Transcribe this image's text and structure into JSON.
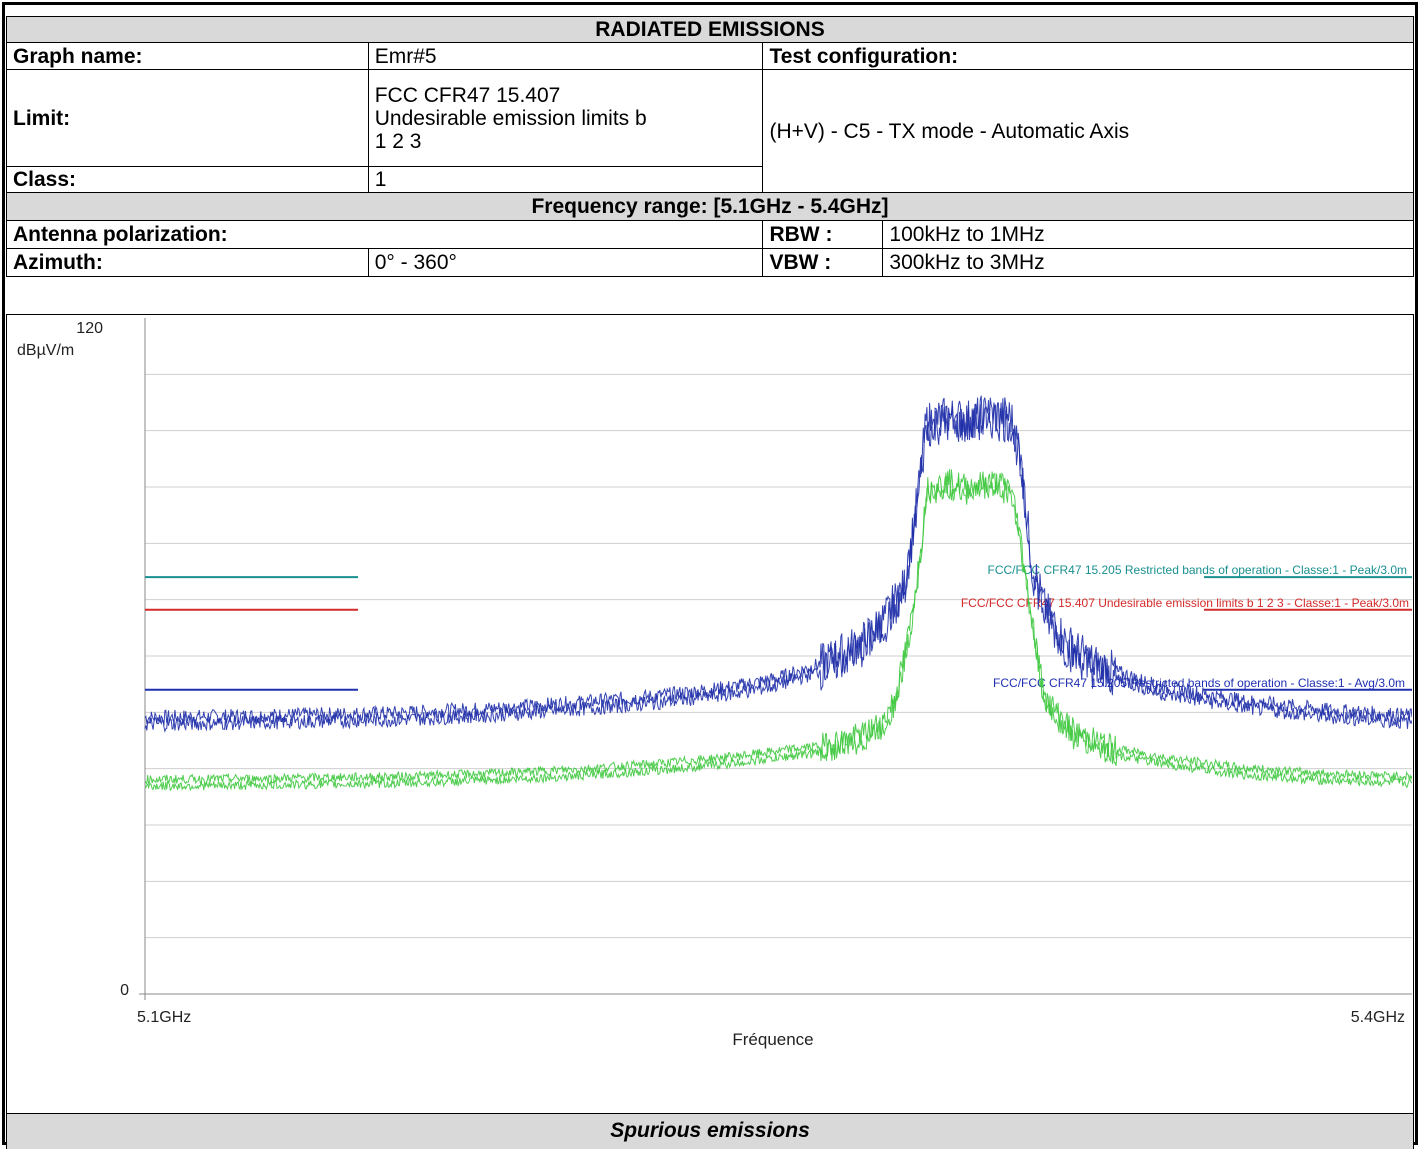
{
  "header": {
    "title": "RADIATED EMISSIONS",
    "graph_name_label": "Graph name:",
    "graph_name_value": "Emr#5",
    "test_config_label": "Test configuration:",
    "limit_label": "Limit:",
    "limit_value_lines": [
      "FCC CFR47 15.407",
      "Undesirable emission limits b",
      "1 2 3"
    ],
    "test_config_value": "(H+V) - C5 - TX mode - Automatic Axis",
    "class_label": "Class:",
    "class_value": "1",
    "freq_range": "Frequency range:  [5.1GHz - 5.4GHz]",
    "antenna_label": "Antenna polarization:",
    "rbw_label": "RBW :",
    "rbw_value": "100kHz to 1MHz",
    "azimuth_label": "Azimuth:",
    "azimuth_value": "0° - 360°",
    "vbw_label": "VBW :",
    "vbw_value": "300kHz to 3MHz"
  },
  "footer": {
    "caption": "Spurious emissions"
  },
  "colors": {
    "peak_restricted": "#1a9090",
    "peak_undesirable": "#d42a2a",
    "avg_restricted": "#1f2fb0",
    "trace_peak": "#1e2ea8",
    "trace_avg": "#3ec83e",
    "grid": "#cfcfcf"
  },
  "chart_data": {
    "type": "line",
    "title": "",
    "xlabel": "Fréquence",
    "ylabel": "dBµV/m",
    "xlim": [
      5.1,
      5.4
    ],
    "ylim": [
      0,
      120
    ],
    "x_unit": "GHz",
    "y_tick_labels": [
      "120",
      "0"
    ],
    "x_tick_labels": [
      "5.1GHz",
      "5.4GHz"
    ],
    "grid": true,
    "limit_lines": [
      {
        "label": "FCC/FCC CFR47 15.205 Restricted bands of operation - Classe:1 - Peak/3.0m",
        "value": 74,
        "color": "#1a9090"
      },
      {
        "label": "FCC/FCC CFR47 15.407 Undesirable emission limits b 1 2 3 - Classe:1 - Peak/3.0m",
        "value": 68.2,
        "color": "#d42a2a"
      },
      {
        "label": "FCC/FCC CFR47 15.205 Restricted bands of operation - Classe:1 - Avg/3.0m",
        "value": 54,
        "color": "#1f2fb0"
      }
    ],
    "series": [
      {
        "color": "#1e2ea8",
        "points": [
          [
            5.1,
            48.5
          ],
          [
            5.12,
            48.7
          ],
          [
            5.14,
            49.0
          ],
          [
            5.16,
            49.3
          ],
          [
            5.18,
            50.0
          ],
          [
            5.2,
            51.0
          ],
          [
            5.22,
            52.2
          ],
          [
            5.24,
            54.0
          ],
          [
            5.25,
            55.5
          ],
          [
            5.26,
            58.0
          ],
          [
            5.27,
            62.0
          ],
          [
            5.275,
            66.0
          ],
          [
            5.28,
            72.0
          ],
          [
            5.283,
            88.0
          ],
          [
            5.285,
            101.0
          ],
          [
            5.29,
            102.0
          ],
          [
            5.295,
            101.5
          ],
          [
            5.3,
            102.5
          ],
          [
            5.305,
            102.0
          ],
          [
            5.307,
            96.0
          ],
          [
            5.31,
            76.0
          ],
          [
            5.313,
            68.0
          ],
          [
            5.318,
            62.0
          ],
          [
            5.325,
            58.0
          ],
          [
            5.34,
            54.0
          ],
          [
            5.36,
            51.5
          ],
          [
            5.38,
            49.8
          ],
          [
            5.4,
            48.8
          ]
        ]
      },
      {
        "color": "#3ec83e",
        "points": [
          [
            5.1,
            37.5
          ],
          [
            5.12,
            37.6
          ],
          [
            5.14,
            37.8
          ],
          [
            5.16,
            38.0
          ],
          [
            5.18,
            38.5
          ],
          [
            5.2,
            39.2
          ],
          [
            5.22,
            40.2
          ],
          [
            5.24,
            41.6
          ],
          [
            5.26,
            43.5
          ],
          [
            5.27,
            45.5
          ],
          [
            5.275,
            48.0
          ],
          [
            5.278,
            53.0
          ],
          [
            5.281,
            64.0
          ],
          [
            5.284,
            80.0
          ],
          [
            5.285,
            89.0
          ],
          [
            5.29,
            90.5
          ],
          [
            5.295,
            89.5
          ],
          [
            5.3,
            90.5
          ],
          [
            5.305,
            89.5
          ],
          [
            5.307,
            82.0
          ],
          [
            5.31,
            66.0
          ],
          [
            5.313,
            52.0
          ],
          [
            5.32,
            46.0
          ],
          [
            5.33,
            43.0
          ],
          [
            5.34,
            41.5
          ],
          [
            5.36,
            39.5
          ],
          [
            5.38,
            38.5
          ],
          [
            5.4,
            38.0
          ]
        ]
      }
    ]
  }
}
